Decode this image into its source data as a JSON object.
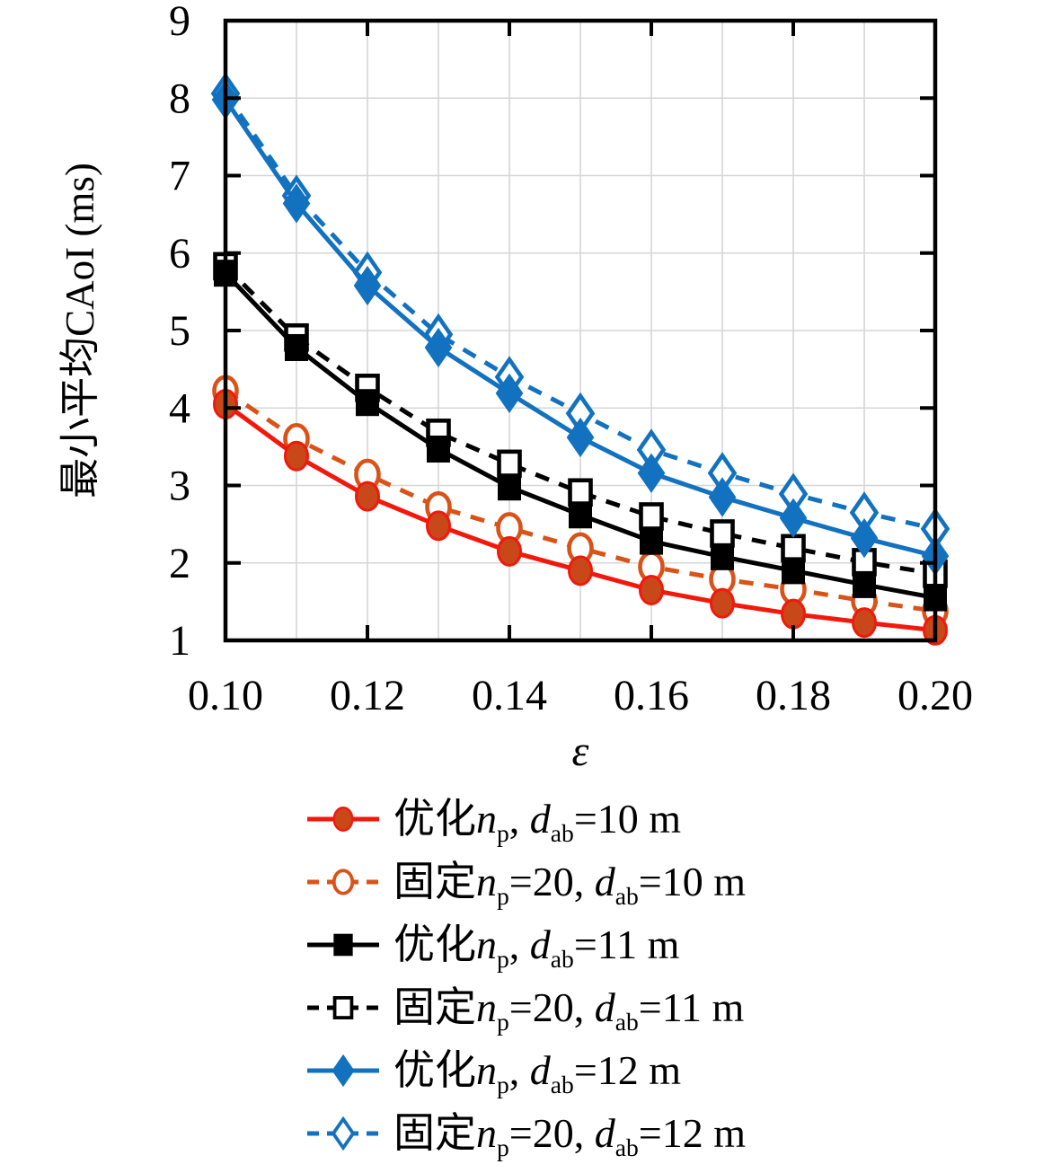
{
  "figure": {
    "background": "#ffffff",
    "ylabel": "最小平均CAoI (ms)",
    "xlabel": "ε"
  },
  "axes": {
    "axis_color": "#000000",
    "grid_color": "#d6d6d6",
    "x_tick_labels": [
      "0.10",
      "0.12",
      "0.14",
      "0.16",
      "0.18",
      "0.20"
    ],
    "x_tick_values": [
      0.1,
      0.12,
      0.14,
      0.16,
      0.18,
      0.2
    ],
    "y_tick_labels": [
      "1",
      "2",
      "3",
      "4",
      "5",
      "6",
      "7",
      "8",
      "9"
    ],
    "y_tick_values": [
      1,
      2,
      3,
      4,
      5,
      6,
      7,
      8,
      9
    ],
    "x_grid_values": [
      0.11,
      0.12,
      0.13,
      0.14,
      0.15,
      0.16,
      0.17,
      0.18,
      0.19
    ],
    "y_grid_values": [
      2,
      3,
      4,
      5,
      6,
      7,
      8
    ]
  },
  "chart_data": {
    "type": "line",
    "title": "",
    "xlabel": "ε",
    "ylabel": "最小平均CAoI (ms)",
    "xlim": [
      0.1,
      0.2
    ],
    "ylim": [
      1,
      9
    ],
    "grid": true,
    "legend_position": "below",
    "x": [
      0.1,
      0.11,
      0.12,
      0.13,
      0.14,
      0.15,
      0.16,
      0.17,
      0.18,
      0.19,
      0.2
    ],
    "series": [
      {
        "name": "优化np, dab=10 m",
        "line": "solid",
        "marker": "circle",
        "marker_filled": true,
        "line_color": "#f2180c",
        "marker_face": "#c9481a",
        "marker_edge": "#f2180c",
        "values": [
          4.05,
          3.38,
          2.86,
          2.48,
          2.15,
          1.9,
          1.65,
          1.48,
          1.34,
          1.23,
          1.13
        ]
      },
      {
        "name": "固定np=20, dab=10 m",
        "line": "dashed",
        "marker": "circle",
        "marker_filled": false,
        "line_color": "#d95319",
        "marker_face": "#ffffff",
        "marker_edge": "#d95319",
        "values": [
          4.22,
          3.6,
          3.14,
          2.72,
          2.45,
          2.19,
          1.95,
          1.79,
          1.66,
          1.51,
          1.38
        ]
      },
      {
        "name": "优化np, dab=11 m",
        "line": "solid",
        "marker": "square",
        "marker_filled": true,
        "line_color": "#000000",
        "marker_face": "#000000",
        "marker_edge": "#000000",
        "values": [
          5.74,
          4.78,
          4.07,
          3.47,
          2.98,
          2.62,
          2.28,
          2.08,
          1.9,
          1.72,
          1.55
        ]
      },
      {
        "name": "固定np=20, dab=11 m",
        "line": "dashed",
        "marker": "square",
        "marker_filled": false,
        "line_color": "#000000",
        "marker_face": "#ffffff",
        "marker_edge": "#000000",
        "values": [
          5.83,
          4.91,
          4.26,
          3.68,
          3.28,
          2.91,
          2.6,
          2.38,
          2.19,
          2.01,
          1.86
        ]
      },
      {
        "name": "优化np, dab=12 m",
        "line": "solid",
        "marker": "diamond",
        "marker_filled": true,
        "line_color": "#1372bf",
        "marker_face": "#1372bf",
        "marker_edge": "#1372bf",
        "values": [
          7.98,
          6.64,
          5.58,
          4.78,
          4.19,
          3.62,
          3.16,
          2.85,
          2.58,
          2.32,
          2.09
        ]
      },
      {
        "name": "固定np=20, dab=12 m",
        "line": "dashed",
        "marker": "diamond",
        "marker_filled": false,
        "line_color": "#1372bf",
        "marker_face": "#ffffff",
        "marker_edge": "#1372bf",
        "values": [
          8.06,
          6.74,
          5.75,
          4.95,
          4.4,
          3.93,
          3.46,
          3.16,
          2.89,
          2.65,
          2.44
        ]
      }
    ]
  },
  "legend": {
    "items": [
      {
        "series_index": 0,
        "segments": [
          [
            "优化",
            "cjk"
          ],
          [
            "n",
            "i"
          ],
          [
            "p",
            "sub"
          ],
          [
            ", ",
            ""
          ],
          [
            "d",
            "i"
          ],
          [
            "ab",
            "sub"
          ],
          [
            "=10 m",
            ""
          ]
        ]
      },
      {
        "series_index": 1,
        "segments": [
          [
            "固定",
            "cjk"
          ],
          [
            "n",
            "i"
          ],
          [
            "p",
            "sub"
          ],
          [
            "=20, ",
            ""
          ],
          [
            "d",
            "i"
          ],
          [
            "ab",
            "sub"
          ],
          [
            "=10 m",
            ""
          ]
        ]
      },
      {
        "series_index": 2,
        "segments": [
          [
            "优化",
            "cjk"
          ],
          [
            "n",
            "i"
          ],
          [
            "p",
            "sub"
          ],
          [
            ", ",
            ""
          ],
          [
            "d",
            "i"
          ],
          [
            "ab",
            "sub"
          ],
          [
            "=11 m",
            ""
          ]
        ]
      },
      {
        "series_index": 3,
        "segments": [
          [
            "固定",
            "cjk"
          ],
          [
            "n",
            "i"
          ],
          [
            "p",
            "sub"
          ],
          [
            "=20, ",
            ""
          ],
          [
            "d",
            "i"
          ],
          [
            "ab",
            "sub"
          ],
          [
            "=11 m",
            ""
          ]
        ]
      },
      {
        "series_index": 4,
        "segments": [
          [
            "优化",
            "cjk"
          ],
          [
            "n",
            "i"
          ],
          [
            "p",
            "sub"
          ],
          [
            ", ",
            ""
          ],
          [
            "d",
            "i"
          ],
          [
            "ab",
            "sub"
          ],
          [
            "=12 m",
            ""
          ]
        ]
      },
      {
        "series_index": 5,
        "segments": [
          [
            "固定",
            "cjk"
          ],
          [
            "n",
            "i"
          ],
          [
            "p",
            "sub"
          ],
          [
            "=20, ",
            ""
          ],
          [
            "d",
            "i"
          ],
          [
            "ab",
            "sub"
          ],
          [
            "=12 m",
            ""
          ]
        ]
      }
    ]
  }
}
